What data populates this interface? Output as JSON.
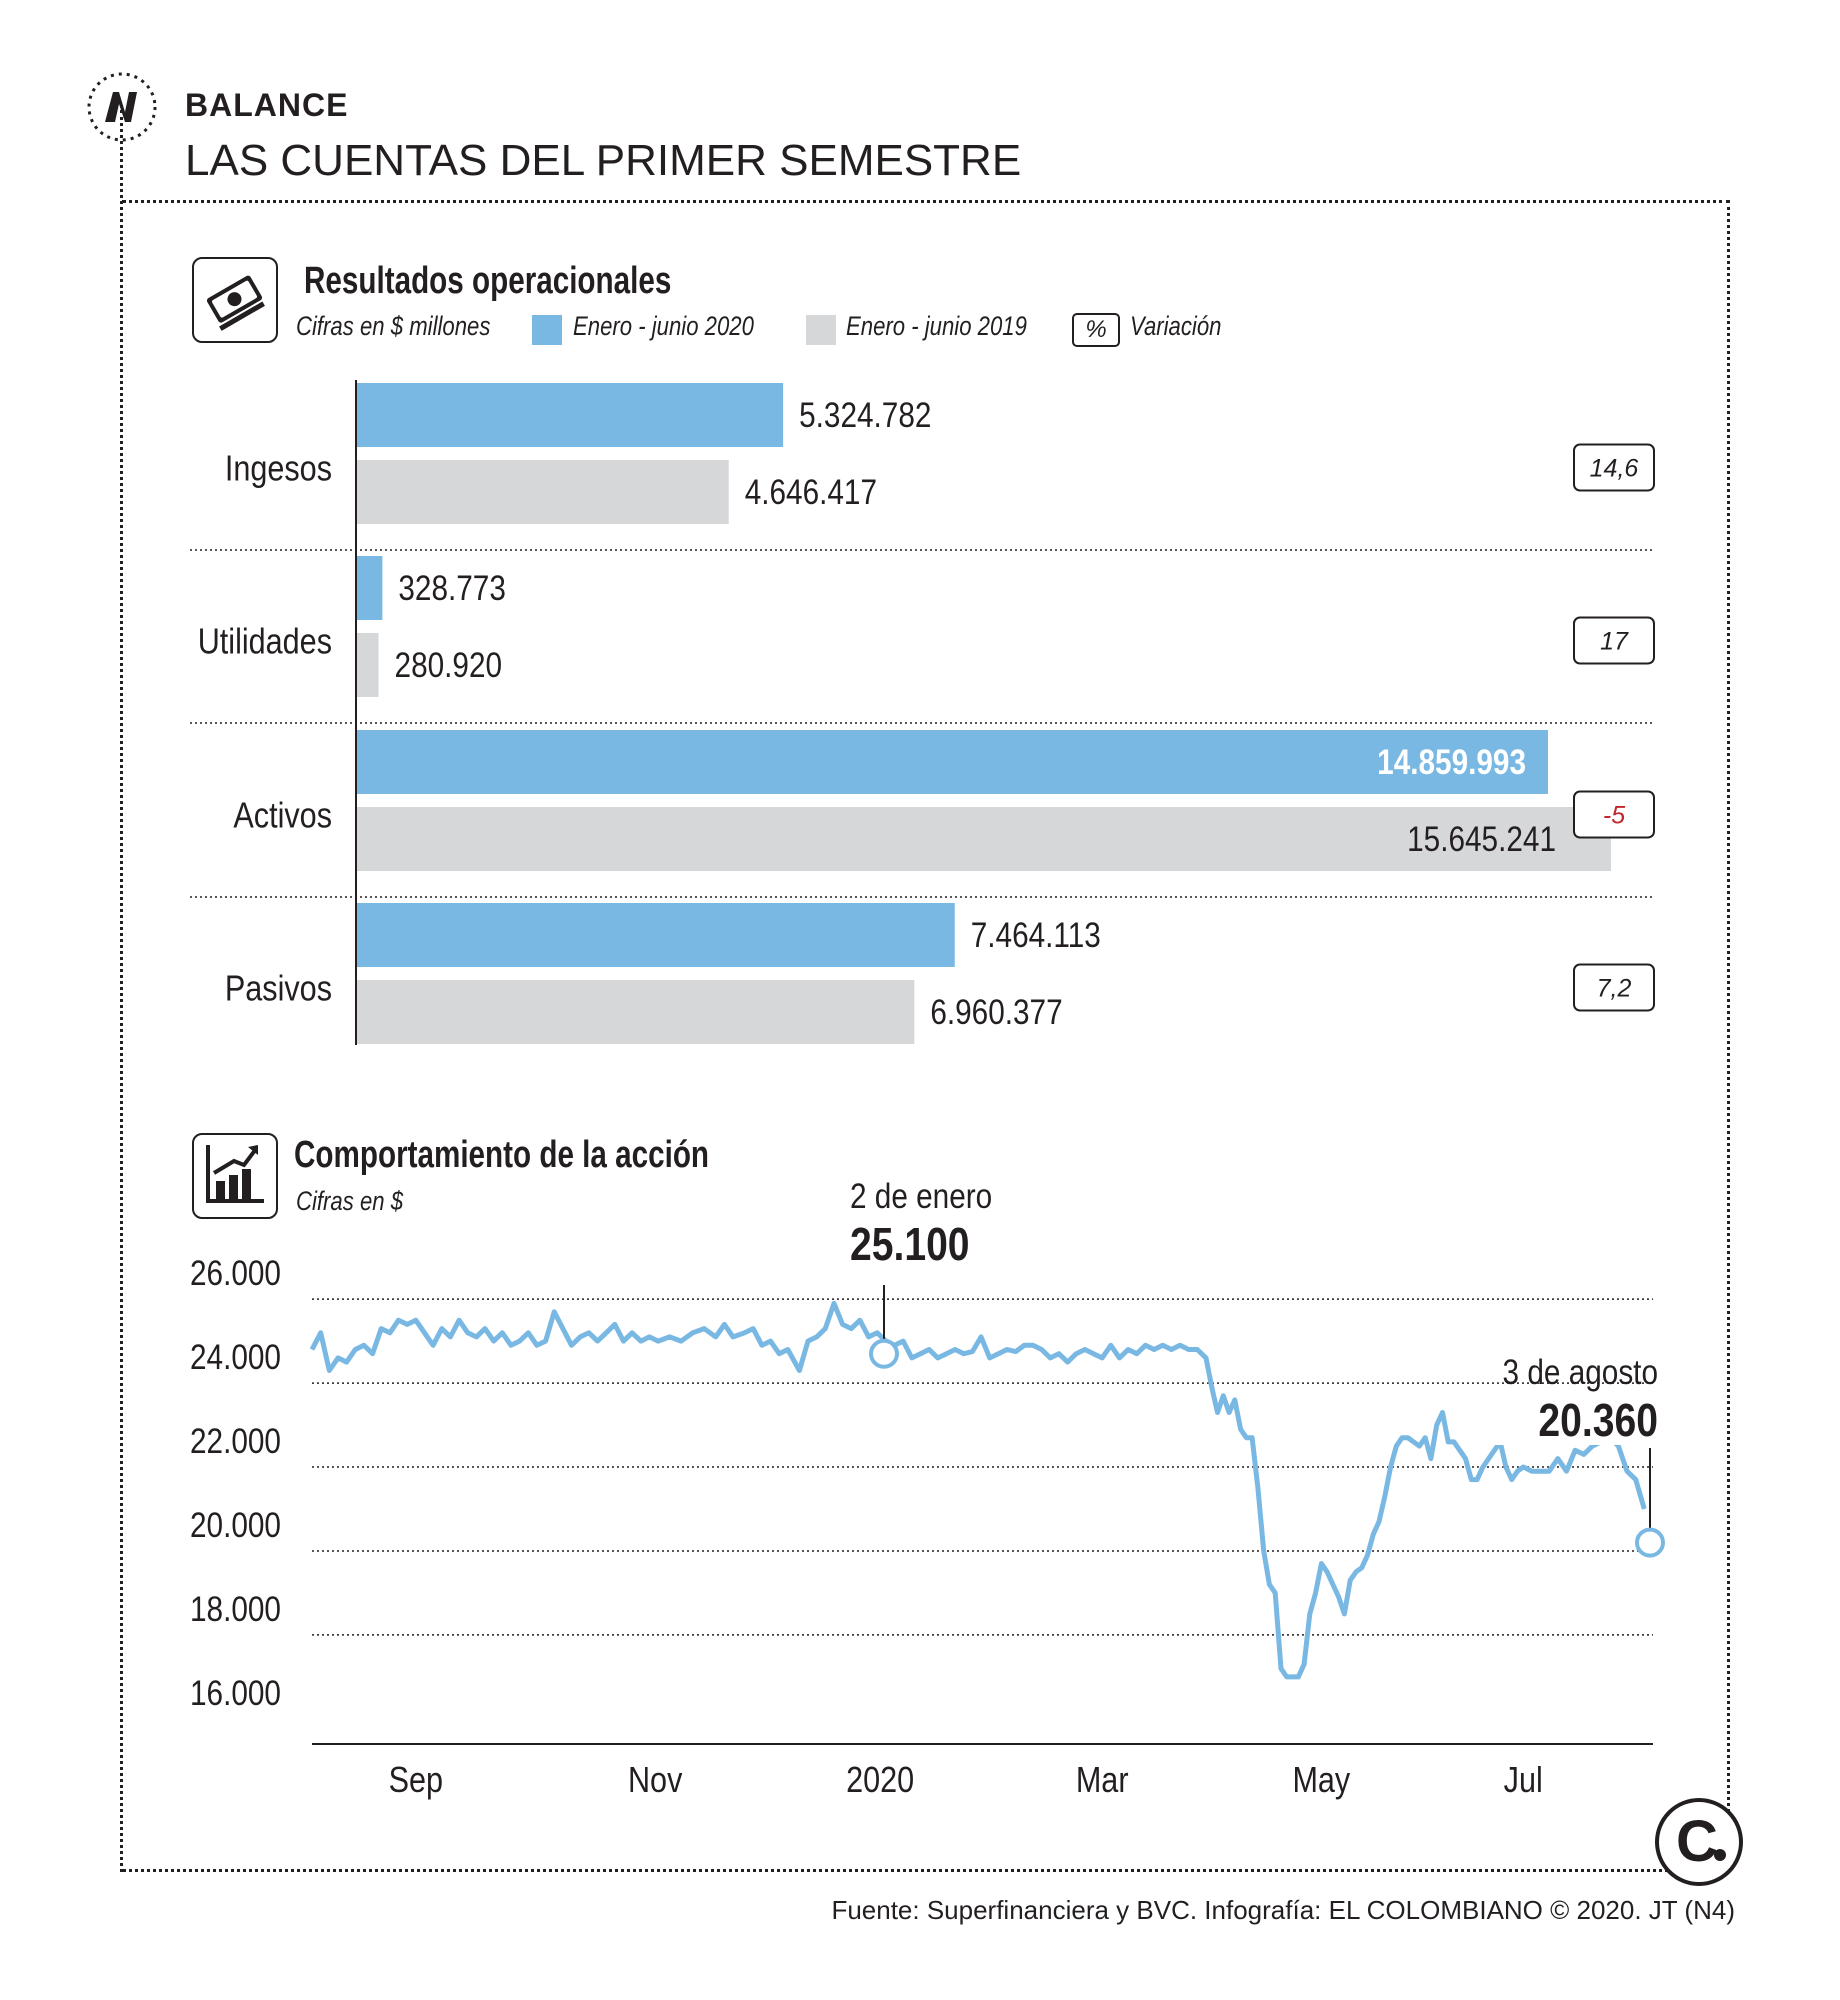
{
  "header": {
    "kicker": "BALANCE",
    "headline": "LAS CUENTAS DEL PRIMER SEMESTRE"
  },
  "section1": {
    "title": "Resultados operacionales",
    "subtitle": "Cifras en $ millones",
    "legend": [
      {
        "label": "Enero - junio 2020",
        "color": "#79b8e3"
      },
      {
        "label": "Enero - junio 2019",
        "color": "#d6d7d9"
      },
      {
        "label": "Variación",
        "symbol": "%"
      }
    ]
  },
  "section2": {
    "title": "Comportamiento de la acción",
    "subtitle": "Cifras en $"
  },
  "chart_data": [
    {
      "type": "bar",
      "orientation": "horizontal",
      "categories": [
        "Ingesos",
        "Utilidades",
        "Activos",
        "Pasivos"
      ],
      "series": [
        {
          "name": "Enero - junio 2020",
          "color": "#79b8e3",
          "values": [
            5324782,
            328773,
            14859993,
            7464113
          ],
          "labels": [
            "5.324.782",
            "328.773",
            "14.859.993",
            "7.464.113"
          ]
        },
        {
          "name": "Enero - junio 2019",
          "color": "#d6d7d9",
          "values": [
            4646417,
            280920,
            15645241,
            6960377
          ],
          "labels": [
            "4.646.417",
            "280.920",
            "15.645.241",
            "6.960.377"
          ]
        }
      ],
      "variation": [
        "14,6",
        "17",
        "-5",
        "7,2"
      ],
      "variation_colors": [
        "#231f20",
        "#231f20",
        "#c1272d",
        "#231f20"
      ]
    },
    {
      "type": "line",
      "x_ticks": [
        "Sep",
        "Nov",
        "2020",
        "Mar",
        "May",
        "Jul"
      ],
      "x_tick_positions": [
        3.6,
        11.9,
        19.7,
        27.4,
        35.0,
        42.0
      ],
      "y_ticks": [
        "26.000",
        "24.000",
        "22.000",
        "20.000",
        "18.000",
        "16.000"
      ],
      "ylim": [
        15400,
        26600
      ],
      "xlim": [
        0,
        46.5
      ],
      "grid": true,
      "color": "#79b8e3",
      "points": [
        [
          0.0,
          24800
        ],
        [
          0.3,
          25200
        ],
        [
          0.6,
          24300
        ],
        [
          0.9,
          24600
        ],
        [
          1.2,
          24500
        ],
        [
          1.5,
          24800
        ],
        [
          1.8,
          24900
        ],
        [
          2.1,
          24700
        ],
        [
          2.4,
          25300
        ],
        [
          2.7,
          25200
        ],
        [
          3.0,
          25500
        ],
        [
          3.3,
          25400
        ],
        [
          3.6,
          25500
        ],
        [
          3.9,
          25200
        ],
        [
          4.2,
          24900
        ],
        [
          4.5,
          25300
        ],
        [
          4.8,
          25100
        ],
        [
          5.1,
          25500
        ],
        [
          5.4,
          25200
        ],
        [
          5.7,
          25100
        ],
        [
          6.0,
          25300
        ],
        [
          6.3,
          25000
        ],
        [
          6.6,
          25200
        ],
        [
          6.9,
          24900
        ],
        [
          7.2,
          25000
        ],
        [
          7.5,
          25200
        ],
        [
          7.8,
          24900
        ],
        [
          8.1,
          25000
        ],
        [
          8.4,
          25700
        ],
        [
          8.7,
          25300
        ],
        [
          9.0,
          24900
        ],
        [
          9.3,
          25100
        ],
        [
          9.6,
          25200
        ],
        [
          9.9,
          25000
        ],
        [
          10.2,
          25200
        ],
        [
          10.5,
          25400
        ],
        [
          10.8,
          25000
        ],
        [
          11.1,
          25200
        ],
        [
          11.4,
          25000
        ],
        [
          11.7,
          25100
        ],
        [
          12.0,
          25000
        ],
        [
          12.4,
          25100
        ],
        [
          12.8,
          25000
        ],
        [
          13.2,
          25200
        ],
        [
          13.6,
          25300
        ],
        [
          14.0,
          25100
        ],
        [
          14.3,
          25400
        ],
        [
          14.6,
          25100
        ],
        [
          15.0,
          25200
        ],
        [
          15.3,
          25300
        ],
        [
          15.6,
          24900
        ],
        [
          15.9,
          25000
        ],
        [
          16.2,
          24700
        ],
        [
          16.5,
          24800
        ],
        [
          16.9,
          24300
        ],
        [
          17.2,
          25000
        ],
        [
          17.5,
          25100
        ],
        [
          17.8,
          25300
        ],
        [
          18.1,
          25900
        ],
        [
          18.4,
          25400
        ],
        [
          18.7,
          25300
        ],
        [
          19.0,
          25500
        ],
        [
          19.3,
          25100
        ],
        [
          19.6,
          25200
        ],
        [
          19.9,
          25000
        ],
        [
          20.2,
          24900
        ],
        [
          20.5,
          25000
        ],
        [
          20.8,
          24600
        ],
        [
          21.1,
          24700
        ],
        [
          21.4,
          24800
        ],
        [
          21.7,
          24600
        ],
        [
          22.0,
          24700
        ],
        [
          22.3,
          24800
        ],
        [
          22.6,
          24700
        ],
        [
          22.9,
          24750
        ],
        [
          23.2,
          25100
        ],
        [
          23.5,
          24600
        ],
        [
          23.8,
          24700
        ],
        [
          24.1,
          24800
        ],
        [
          24.4,
          24750
        ],
        [
          24.7,
          24900
        ],
        [
          25.0,
          24900
        ],
        [
          25.3,
          24800
        ],
        [
          25.6,
          24600
        ],
        [
          25.9,
          24700
        ],
        [
          26.2,
          24500
        ],
        [
          26.5,
          24700
        ],
        [
          26.8,
          24800
        ],
        [
          27.1,
          24700
        ],
        [
          27.4,
          24600
        ],
        [
          27.7,
          24900
        ],
        [
          28.0,
          24600
        ],
        [
          28.3,
          24800
        ],
        [
          28.6,
          24700
        ],
        [
          28.9,
          24900
        ],
        [
          29.2,
          24800
        ],
        [
          29.5,
          24900
        ],
        [
          29.8,
          24800
        ],
        [
          30.1,
          24900
        ],
        [
          30.4,
          24800
        ],
        [
          30.7,
          24800
        ],
        [
          31.0,
          24600
        ],
        [
          31.2,
          23900
        ],
        [
          31.4,
          23300
        ],
        [
          31.6,
          23700
        ],
        [
          31.8,
          23300
        ],
        [
          32.0,
          23600
        ],
        [
          32.2,
          22900
        ],
        [
          32.4,
          22700
        ],
        [
          32.6,
          22700
        ],
        [
          32.8,
          21500
        ],
        [
          33.0,
          20000
        ],
        [
          33.2,
          19200
        ],
        [
          33.4,
          19000
        ],
        [
          33.6,
          17200
        ],
        [
          33.8,
          17000
        ],
        [
          34.0,
          17000
        ],
        [
          34.2,
          17000
        ],
        [
          34.4,
          17300
        ],
        [
          34.6,
          18500
        ],
        [
          34.8,
          19000
        ],
        [
          35.0,
          19700
        ],
        [
          35.2,
          19500
        ],
        [
          35.4,
          19200
        ],
        [
          35.6,
          18900
        ],
        [
          35.8,
          18500
        ],
        [
          36.0,
          19300
        ],
        [
          36.2,
          19500
        ],
        [
          36.4,
          19600
        ],
        [
          36.6,
          19900
        ],
        [
          36.8,
          20400
        ],
        [
          37.0,
          20700
        ],
        [
          37.2,
          21300
        ],
        [
          37.4,
          22000
        ],
        [
          37.6,
          22500
        ],
        [
          37.8,
          22700
        ],
        [
          38.0,
          22700
        ],
        [
          38.2,
          22600
        ],
        [
          38.4,
          22500
        ],
        [
          38.6,
          22700
        ],
        [
          38.8,
          22200
        ],
        [
          39.0,
          23000
        ],
        [
          39.2,
          23300
        ],
        [
          39.4,
          22600
        ],
        [
          39.6,
          22600
        ],
        [
          39.8,
          22400
        ],
        [
          40.0,
          22200
        ],
        [
          40.2,
          21700
        ],
        [
          40.4,
          21700
        ],
        [
          40.6,
          22000
        ],
        [
          40.8,
          22200
        ],
        [
          41.0,
          22400
        ],
        [
          41.2,
          22600
        ],
        [
          41.4,
          22000
        ],
        [
          41.6,
          21700
        ],
        [
          41.8,
          21900
        ],
        [
          42.0,
          22000
        ],
        [
          42.3,
          21900
        ],
        [
          42.6,
          21900
        ],
        [
          42.9,
          21900
        ],
        [
          43.2,
          22200
        ],
        [
          43.5,
          21900
        ],
        [
          43.8,
          22400
        ],
        [
          44.1,
          22300
        ],
        [
          44.4,
          22500
        ],
        [
          44.7,
          22600
        ],
        [
          45.0,
          22700
        ],
        [
          45.3,
          22500
        ],
        [
          45.6,
          21900
        ],
        [
          45.9,
          21700
        ],
        [
          46.2,
          21000
        ]
      ],
      "annotations": [
        {
          "text": "2 de enero",
          "value": "25.100"
        },
        {
          "text": "3 de agosto",
          "value": "20.360"
        }
      ]
    }
  ],
  "source": "Fuente: Superfinanciera y BVC. Infografía: EL COLOMBIANO © 2020. JT (N4)",
  "brand_icon": "el-colombiano-c-logo"
}
